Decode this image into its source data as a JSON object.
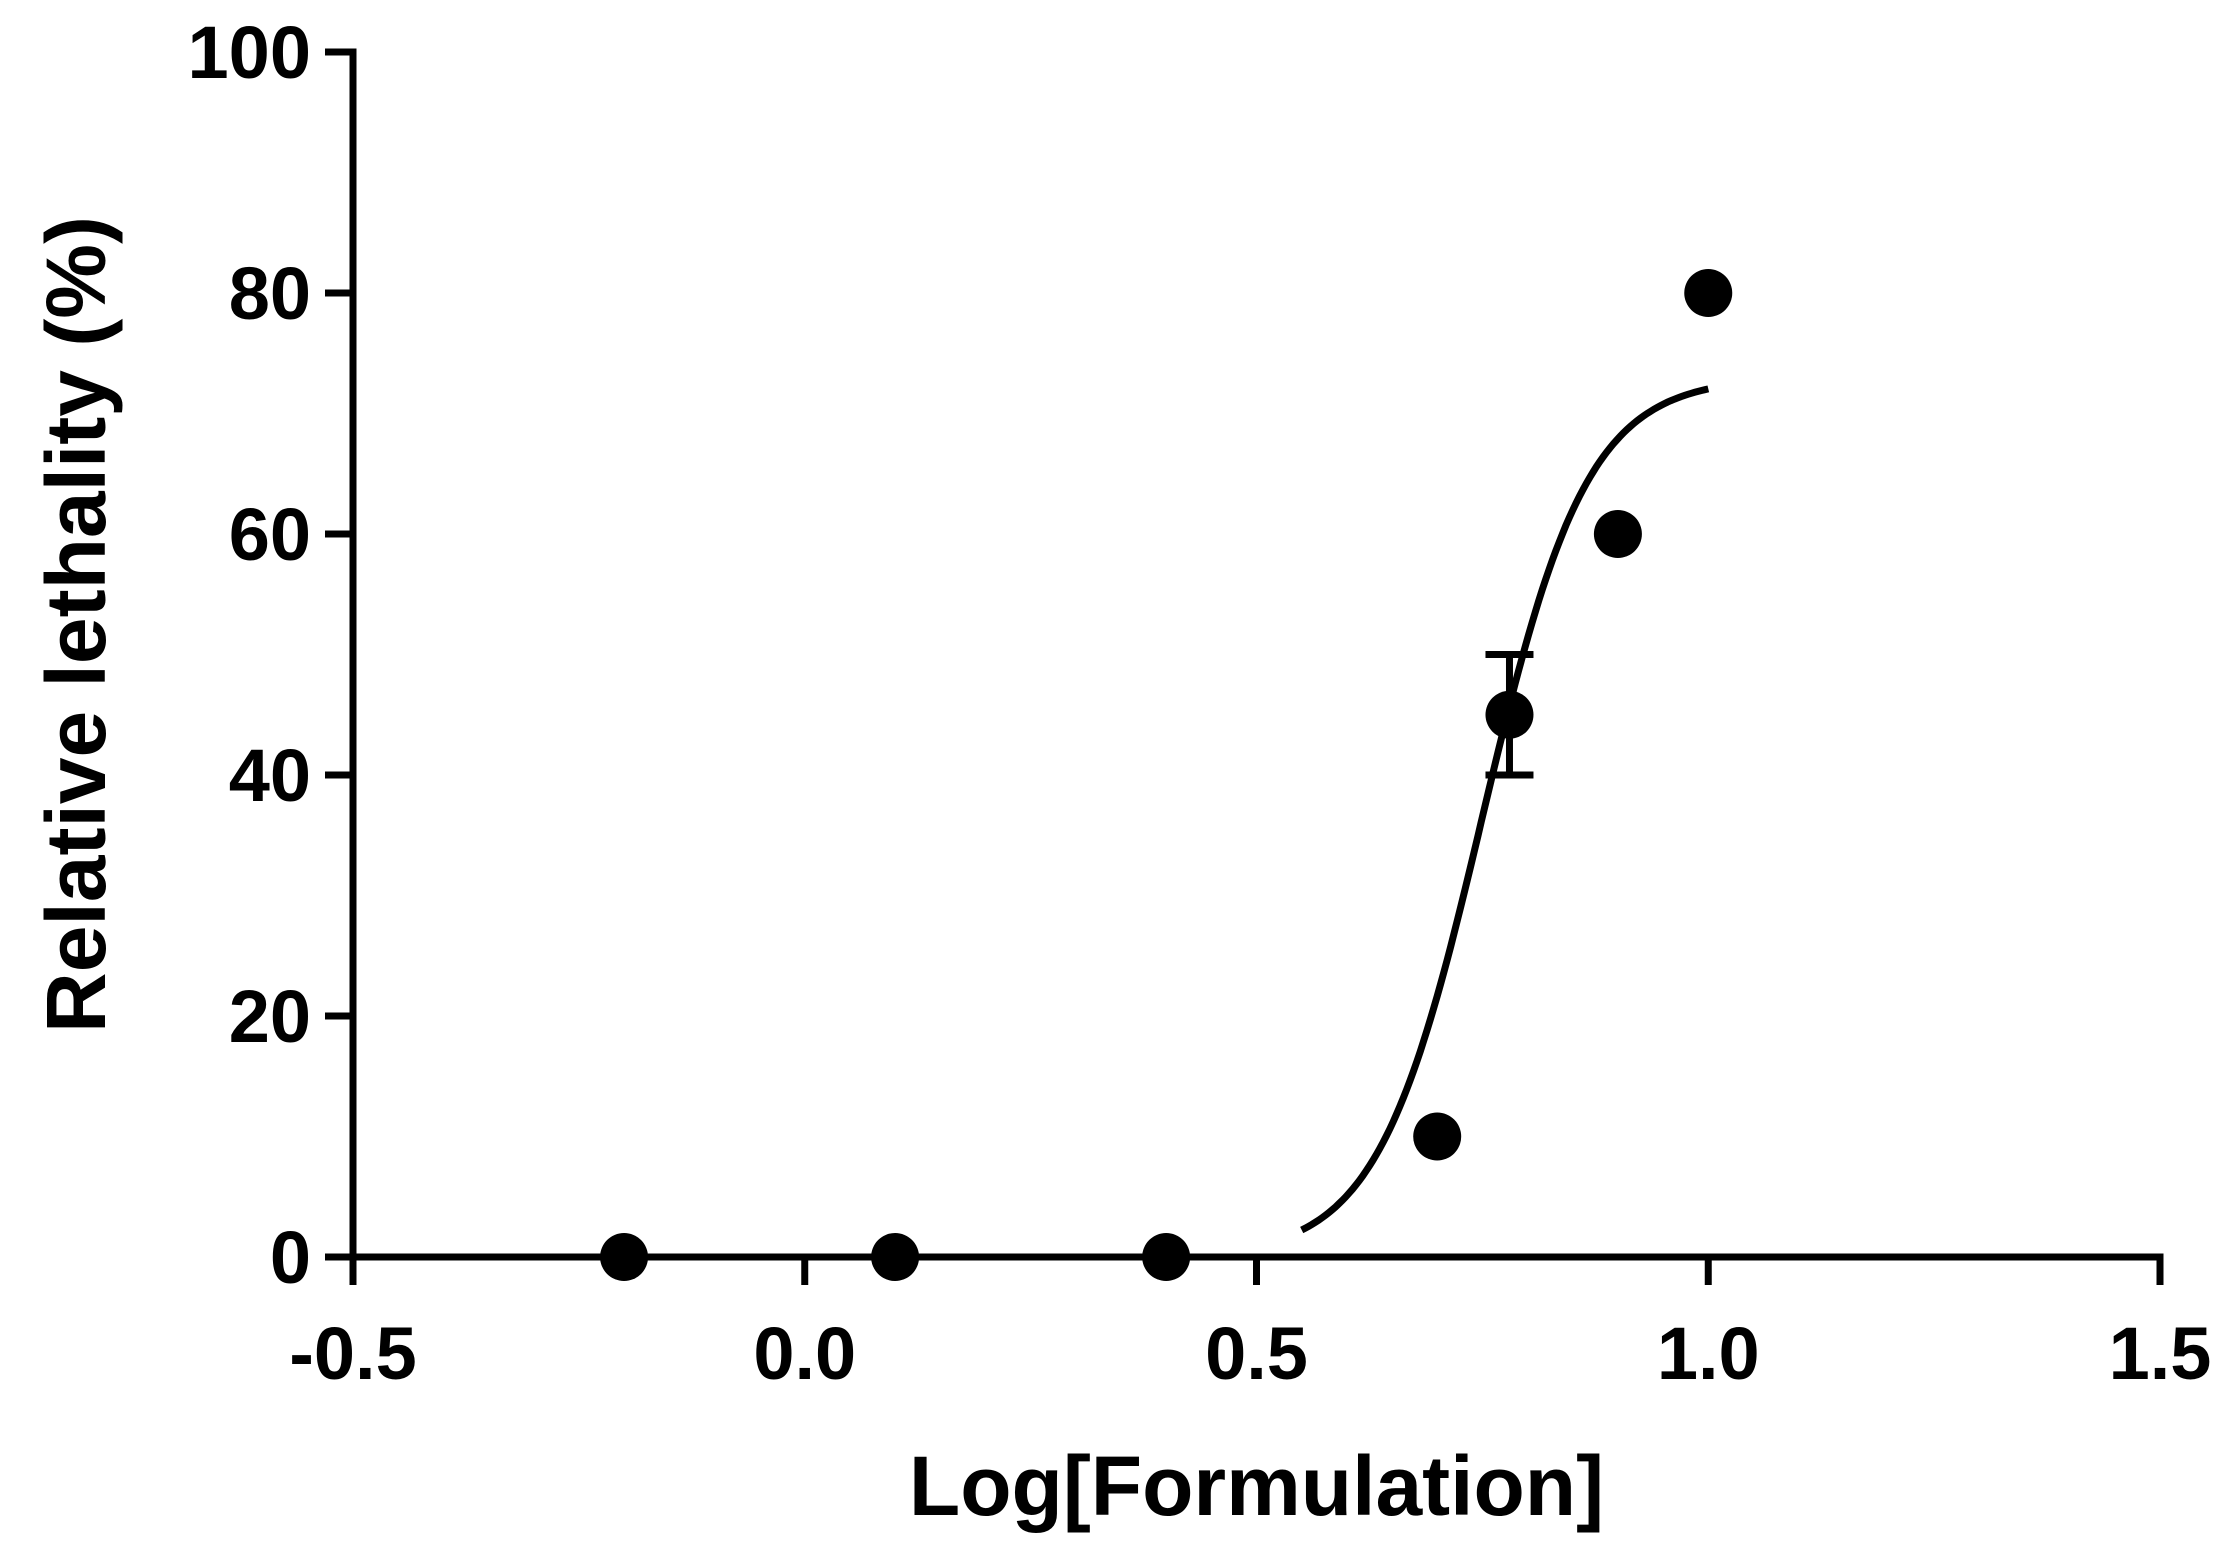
{
  "chart_data": {
    "type": "scatter",
    "title": "",
    "xlabel": "Log[Formulation]",
    "ylabel": "Relative lethality (%)",
    "xlim": [
      -0.5,
      1.5
    ],
    "ylim": [
      0,
      100
    ],
    "x_ticks": [
      -0.5,
      0.0,
      0.5,
      1.0,
      1.5
    ],
    "x_tick_labels": [
      "-0.5",
      "0.0",
      "0.5",
      "1.0",
      "1.5"
    ],
    "y_ticks": [
      0,
      20,
      40,
      60,
      80,
      100
    ],
    "y_tick_labels": [
      "0",
      "20",
      "40",
      "60",
      "80",
      "100"
    ],
    "grid": false,
    "series": [
      {
        "points": [
          {
            "x": -0.2,
            "y": 0
          },
          {
            "x": 0.1,
            "y": 0
          },
          {
            "x": 0.4,
            "y": 0
          },
          {
            "x": 0.7,
            "y": 10
          },
          {
            "x": 0.78,
            "y": 45,
            "err_low": 40,
            "err_high": 50
          },
          {
            "x": 0.9,
            "y": 60
          },
          {
            "x": 1.0,
            "y": 80
          }
        ],
        "color": "#000000"
      }
    ],
    "fit_curve": {
      "model": "sigmoidal dose-response",
      "bottom": 0,
      "top": 73,
      "log_ec50": 0.75,
      "hill_slope": 7.5,
      "x_range": [
        0.55,
        1.0
      ]
    }
  }
}
